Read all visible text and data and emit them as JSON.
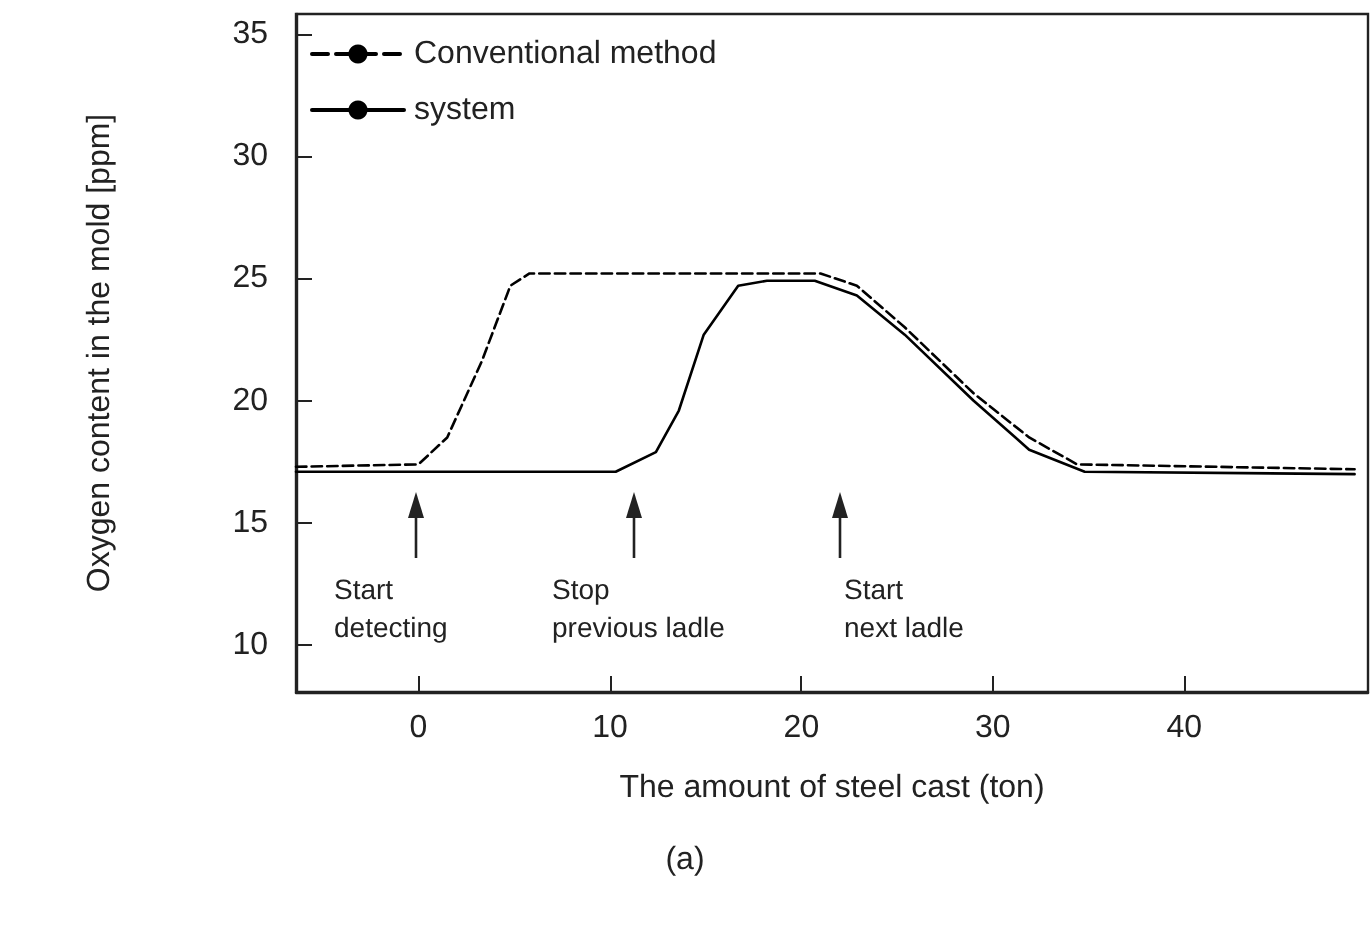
{
  "chart_data": {
    "type": "line",
    "xlabel": "The amount of steel cast (ton)",
    "ylabel": "Oxygen content in the mold [ppm]",
    "xlim": [
      -6.4,
      49.6
    ],
    "ylim": [
      8.1,
      35.8
    ],
    "xticks": [
      0,
      10,
      20,
      30,
      40
    ],
    "yticks": [
      10,
      15,
      20,
      25,
      30,
      35
    ],
    "legend": "top left",
    "marker": "none",
    "series": [
      {
        "name": "Conventional method",
        "color": "#000000",
        "line_style": "dashed",
        "x": [
          -6.4,
          0,
          1.5,
          3.3,
          4.8,
          5.8,
          21.0,
          22.9,
          25.4,
          29.0,
          31.9,
          34.4,
          48.9
        ],
        "values": [
          17.3,
          17.4,
          18.5,
          21.6,
          24.7,
          25.2,
          25.2,
          24.7,
          23.0,
          20.3,
          18.5,
          17.4,
          17.2
        ]
      },
      {
        "name": "system",
        "color": "#000000",
        "line_style": "solid",
        "x": [
          -6.4,
          10.3,
          12.4,
          13.6,
          14.9,
          16.7,
          18.2,
          20.7,
          22.9,
          25.4,
          29.0,
          31.9,
          34.8,
          48.9
        ],
        "values": [
          17.1,
          17.1,
          17.9,
          19.6,
          22.7,
          24.7,
          24.9,
          24.9,
          24.3,
          22.7,
          20.0,
          18.0,
          17.1,
          17.0
        ]
      }
    ],
    "annotations": [
      "Start\ndetecting",
      "Stop\nprevious ladle",
      "Start\nnext ladle",
      "(a)"
    ]
  }
}
